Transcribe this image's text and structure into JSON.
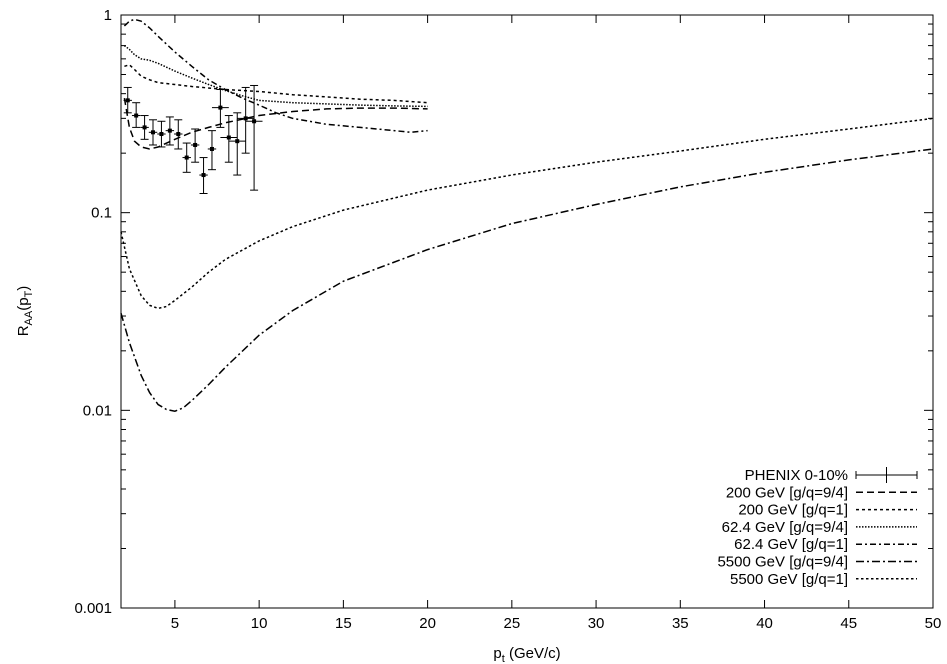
{
  "chart_data": {
    "type": "line",
    "title": "",
    "xlabel_main": "p",
    "xlabel_sub": "t",
    "xlabel_tail": " (GeV/c)",
    "ylabel_main": "R",
    "ylabel_sub": "AA",
    "ylabel_mid": "(p",
    "ylabel_sub2": "T",
    "ylabel_tail": ")",
    "xlim": [
      1.8,
      50
    ],
    "ylim": [
      0.001,
      1
    ],
    "yscale": "log",
    "xticks": [
      5,
      10,
      15,
      20,
      25,
      30,
      35,
      40,
      45,
      50
    ],
    "xtick_labels": [
      "5",
      "10",
      "15",
      "20",
      "25",
      "30",
      "35",
      "40",
      "45",
      "50"
    ],
    "yticks": [
      0.001,
      0.01,
      0.1,
      1
    ],
    "ytick_labels": [
      "0.001",
      "0.01",
      "0.1",
      "1"
    ],
    "grid": false,
    "legend_position": "bottom-right",
    "series": [
      {
        "name": "PHENIX 0-10%",
        "style": "points-errorbars",
        "points": [
          {
            "x": 2.2,
            "y": 0.37,
            "ylo": 0.32,
            "yhi": 0.43,
            "xerr": 0.25
          },
          {
            "x": 2.7,
            "y": 0.31,
            "ylo": 0.27,
            "yhi": 0.36,
            "xerr": 0.25
          },
          {
            "x": 3.2,
            "y": 0.27,
            "ylo": 0.235,
            "yhi": 0.31,
            "xerr": 0.25
          },
          {
            "x": 3.7,
            "y": 0.255,
            "ylo": 0.22,
            "yhi": 0.295,
            "xerr": 0.25
          },
          {
            "x": 4.2,
            "y": 0.25,
            "ylo": 0.215,
            "yhi": 0.29,
            "xerr": 0.25
          },
          {
            "x": 4.7,
            "y": 0.26,
            "ylo": 0.22,
            "yhi": 0.305,
            "xerr": 0.25
          },
          {
            "x": 5.2,
            "y": 0.25,
            "ylo": 0.21,
            "yhi": 0.295,
            "xerr": 0.25
          },
          {
            "x": 5.7,
            "y": 0.19,
            "ylo": 0.16,
            "yhi": 0.225,
            "xerr": 0.25
          },
          {
            "x": 6.2,
            "y": 0.22,
            "ylo": 0.18,
            "yhi": 0.265,
            "xerr": 0.25
          },
          {
            "x": 6.7,
            "y": 0.155,
            "ylo": 0.125,
            "yhi": 0.19,
            "xerr": 0.25
          },
          {
            "x": 7.2,
            "y": 0.21,
            "ylo": 0.165,
            "yhi": 0.26,
            "xerr": 0.25
          },
          {
            "x": 7.7,
            "y": 0.34,
            "ylo": 0.27,
            "yhi": 0.42,
            "xerr": 0.5
          },
          {
            "x": 8.2,
            "y": 0.24,
            "ylo": 0.18,
            "yhi": 0.31,
            "xerr": 0.5
          },
          {
            "x": 8.7,
            "y": 0.23,
            "ylo": 0.155,
            "yhi": 0.32,
            "xerr": 0.5
          },
          {
            "x": 9.2,
            "y": 0.3,
            "ylo": 0.2,
            "yhi": 0.43,
            "xerr": 0.5
          },
          {
            "x": 9.7,
            "y": 0.29,
            "ylo": 0.13,
            "yhi": 0.44,
            "xerr": 0.5
          }
        ]
      },
      {
        "name": "200 GeV [g/q=9/4]",
        "dash": "7,4",
        "x": [
          2,
          2.3,
          2.6,
          3,
          3.5,
          4,
          5,
          6,
          7,
          8,
          10,
          12,
          14,
          16,
          18,
          20
        ],
        "y": [
          0.38,
          0.27,
          0.23,
          0.215,
          0.21,
          0.215,
          0.235,
          0.255,
          0.27,
          0.285,
          0.31,
          0.325,
          0.335,
          0.338,
          0.338,
          0.335
        ]
      },
      {
        "name": "200 GeV [g/q=1]",
        "dash": "3,3",
        "x": [
          2,
          2.3,
          2.6,
          3,
          3.5,
          4,
          5,
          6,
          8,
          10,
          12,
          14,
          16,
          18,
          20
        ],
        "y": [
          0.55,
          0.56,
          0.53,
          0.49,
          0.47,
          0.455,
          0.445,
          0.435,
          0.42,
          0.41,
          0.395,
          0.385,
          0.375,
          0.37,
          0.36
        ]
      },
      {
        "name": "62.4 GeV [g/q=9/4]",
        "dash": "1.5,1.5",
        "x": [
          2,
          2.3,
          2.6,
          3,
          3.5,
          4,
          5,
          6,
          7,
          8,
          9,
          10,
          12,
          14,
          16,
          18,
          20
        ],
        "y": [
          0.7,
          0.67,
          0.63,
          0.6,
          0.59,
          0.57,
          0.52,
          0.48,
          0.445,
          0.415,
          0.39,
          0.37,
          0.36,
          0.355,
          0.35,
          0.347,
          0.345
        ]
      },
      {
        "name": "62.4 GeV [g/q=1]",
        "dash": "6,3,2,3",
        "x": [
          2,
          2.3,
          2.6,
          3,
          3.5,
          4,
          5,
          6,
          7,
          8,
          9,
          10,
          11,
          12,
          14,
          16,
          18,
          19,
          20
        ],
        "y": [
          0.88,
          0.93,
          0.95,
          0.93,
          0.86,
          0.78,
          0.65,
          0.55,
          0.47,
          0.42,
          0.38,
          0.35,
          0.32,
          0.3,
          0.28,
          0.27,
          0.26,
          0.255,
          0.26
        ]
      },
      {
        "name": "5500 GeV [g/q=9/4]",
        "dash": "8,3,2,3",
        "x": [
          1.8,
          2.3,
          3,
          3.5,
          4,
          4.5,
          5,
          5.5,
          6,
          7,
          8,
          10,
          12,
          15,
          20,
          25,
          30,
          35,
          40,
          45,
          50
        ],
        "y": [
          0.031,
          0.022,
          0.015,
          0.0123,
          0.0107,
          0.0101,
          0.0099,
          0.0103,
          0.0112,
          0.0135,
          0.0165,
          0.024,
          0.032,
          0.045,
          0.065,
          0.088,
          0.11,
          0.135,
          0.16,
          0.185,
          0.21
        ]
      },
      {
        "name": "5500 GeV [g/q=1]",
        "dash": "2.5,2.5",
        "x": [
          1.8,
          2.3,
          3,
          3.5,
          4,
          4.5,
          5,
          6,
          7,
          8,
          10,
          12,
          15,
          20,
          25,
          30,
          35,
          40,
          45,
          50
        ],
        "y": [
          0.08,
          0.052,
          0.038,
          0.034,
          0.0328,
          0.0335,
          0.036,
          0.042,
          0.05,
          0.058,
          0.072,
          0.085,
          0.103,
          0.13,
          0.155,
          0.18,
          0.205,
          0.235,
          0.265,
          0.3
        ]
      }
    ]
  }
}
